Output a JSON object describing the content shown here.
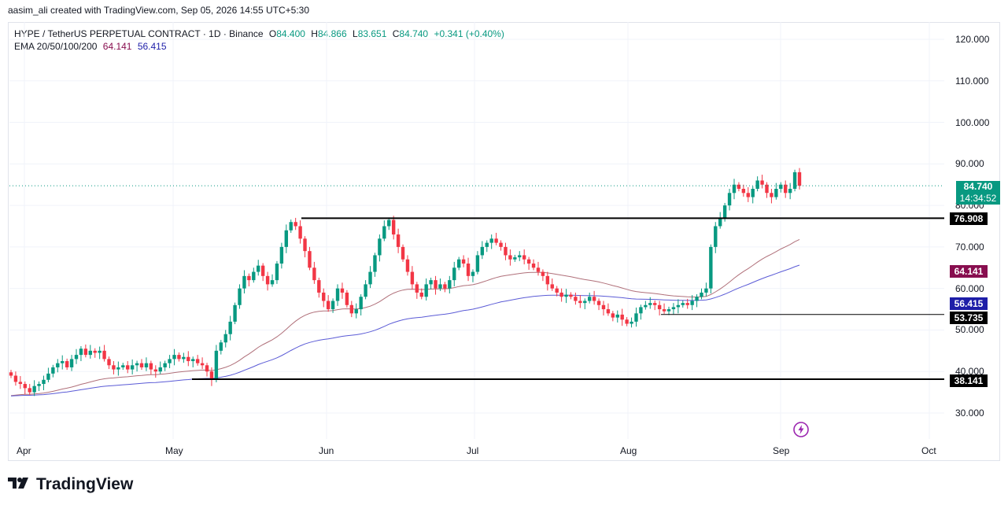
{
  "credit": "aasim_ali created with TradingView.com, Sep 05, 2026 14:55 UTC+5:30",
  "legend": {
    "symbol": "HYPE / TetherUS PERPETUAL CONTRACT · 1D · Binance",
    "open_label": "O",
    "open": "84.400",
    "high_label": "H",
    "high": "84.866",
    "low_label": "L",
    "low": "83.651",
    "close_label": "C",
    "close": "84.740",
    "change": "+0.341 (+0.40%)",
    "ema_label": "EMA 20/50/100/200",
    "ema_value_1": "64.141",
    "ema_value_2": "56.415"
  },
  "price_axis": [
    "120.000",
    "110.000",
    "100.000",
    "90.000",
    "80.000",
    "70.000",
    "60.000",
    "50.000",
    "40.000",
    "30.000"
  ],
  "time_axis": [
    "Apr",
    "May",
    "Jun",
    "Jul",
    "Aug",
    "Sep",
    "Oct"
  ],
  "tags": {
    "last_price": "84.740",
    "countdown": "14:34:52",
    "resistance": "76.908",
    "ema_a": "64.141",
    "ema_b": "56.415",
    "support_mid": "53.735",
    "support_low": "38.141"
  },
  "colors": {
    "up": "#089981",
    "down": "#f23645",
    "ema_a": "#b0707a",
    "ema_b": "#5b5bd6",
    "ema_tag_a": "#880e4f",
    "ema_tag_b": "#1e1ea8",
    "level": "#000000"
  },
  "icons": {
    "lightning": "lightning-icon"
  },
  "branding": {
    "name": "TradingView"
  },
  "chart_data": {
    "type": "candlestick",
    "series": [
      {
        "name": "HYPE / TetherUS PERPETUAL CONTRACT",
        "kind": "ohlc"
      },
      {
        "name": "EMA",
        "last_value": 64.141
      },
      {
        "name": "EMA",
        "last_value": 56.415
      }
    ],
    "closes": [
      39,
      37.5,
      37,
      36,
      35,
      36.5,
      37,
      38,
      39.5,
      41,
      42,
      42.5,
      41,
      43,
      44,
      45.5,
      44,
      45,
      44.5,
      45,
      43,
      41.5,
      40.5,
      41,
      41.5,
      40.5,
      41.5,
      42,
      41,
      42,
      40.5,
      40,
      41,
      42,
      43,
      44,
      43,
      43.5,
      42.5,
      43,
      42,
      41.5,
      40,
      38,
      45,
      47,
      49,
      52,
      56,
      60,
      63,
      62,
      64,
      65.5,
      63,
      61,
      62,
      66,
      70,
      74,
      76,
      75,
      72,
      69,
      65,
      62,
      59,
      57,
      55,
      57,
      60,
      59,
      56,
      54,
      55,
      58,
      61,
      64,
      68,
      72,
      75,
      76.5,
      73,
      70,
      67,
      64,
      61,
      59,
      58,
      61,
      62,
      60,
      61,
      60,
      62,
      65,
      67,
      66,
      63,
      64,
      68,
      70,
      71,
      72,
      71,
      70,
      68,
      67,
      67.5,
      68,
      67,
      66,
      65,
      64,
      63,
      61,
      60,
      59,
      58,
      58.5,
      58,
      57,
      56.5,
      57,
      58,
      57,
      56,
      55,
      54,
      53,
      53.7,
      52.5,
      51.5,
      52,
      54,
      55.5,
      56,
      56.5,
      56,
      55,
      54.5,
      55,
      55.5,
      56,
      56.5,
      56,
      57,
      58,
      59,
      60,
      70,
      75,
      77,
      80,
      83,
      85,
      84,
      83,
      82,
      84,
      86,
      85,
      83,
      82,
      84,
      85,
      83,
      84,
      88,
      84.74
    ],
    "y_range": [
      25,
      127
    ],
    "x_labels": [
      "Apr",
      "May",
      "Jun",
      "Jul",
      "Aug",
      "Sep",
      "Oct"
    ],
    "horizontal_levels": [
      76.908,
      53.735,
      38.141
    ],
    "last_price": 84.74,
    "ema_values": [
      64.141,
      56.415
    ]
  }
}
